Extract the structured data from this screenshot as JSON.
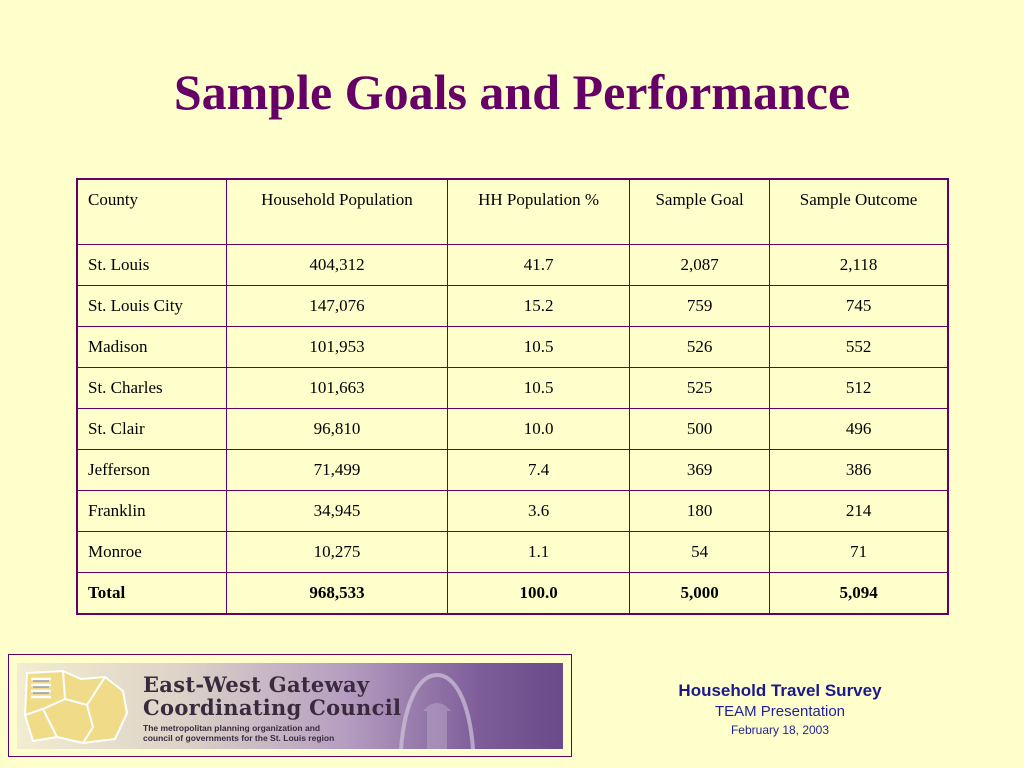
{
  "title": "Sample Goals and Performance",
  "table": {
    "headers": [
      "County",
      "Household Population",
      "HH Population %",
      "Sample Goal",
      "Sample Outcome"
    ],
    "rows": [
      [
        "St. Louis",
        "404,312",
        "41.7",
        "2,087",
        "2,118"
      ],
      [
        "St. Louis City",
        "147,076",
        "15.2",
        "759",
        "745"
      ],
      [
        "Madison",
        "101,953",
        "10.5",
        "526",
        "552"
      ],
      [
        "St. Charles",
        "101,663",
        "10.5",
        "525",
        "512"
      ],
      [
        "St. Clair",
        "96,810",
        "10.0",
        "500",
        "496"
      ],
      [
        "Jefferson",
        "71,499",
        "7.4",
        "369",
        "386"
      ],
      [
        "Franklin",
        "34,945",
        "3.6",
        "180",
        "214"
      ],
      [
        "Monroe",
        "10,275",
        "1.1",
        "54",
        "71"
      ]
    ],
    "total": [
      "Total",
      "968,533",
      "100.0",
      "5,000",
      "5,094"
    ]
  },
  "logo": {
    "line1": "East-West Gateway",
    "line2": "Coordinating Council",
    "tagline1": "The metropolitan planning organization and",
    "tagline2": "council of governments for the St. Louis region"
  },
  "footer": {
    "title": "Household Travel Survey",
    "subtitle": "TEAM Presentation",
    "date": "February 18, 2003"
  },
  "colors": {
    "background": "#ffffcc",
    "title": "#660066",
    "border": "#660066",
    "footer_text": "#1a1a8c"
  }
}
